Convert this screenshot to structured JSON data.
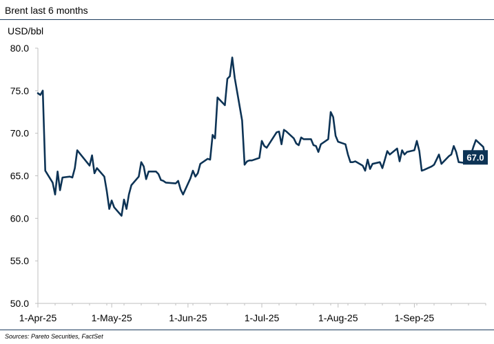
{
  "header": {
    "title": "Brent last 6 months"
  },
  "footer": {
    "source": "Sources: Pareto Securities, FactSet"
  },
  "colors": {
    "line": "#0d3355",
    "label_bg": "#0d3355",
    "label_text": "#ffffff",
    "rule": "#1b3a5c",
    "axis": "#bfbfbf"
  },
  "chart_data": {
    "type": "line",
    "title": "Brent last 6 months",
    "ylabel": "USD/bbl",
    "xlabel": "",
    "ylim": [
      50,
      80
    ],
    "yticks": [
      50,
      55,
      60,
      65,
      70,
      75,
      80
    ],
    "ytick_labels": [
      "50.0",
      "55.0",
      "60.0",
      "65.0",
      "70.0",
      "75.0",
      "80.0"
    ],
    "xlim": [
      "2025-04-01",
      "2025-09-30"
    ],
    "xticks": [
      "2025-04-01",
      "2025-05-01",
      "2025-06-01",
      "2025-07-01",
      "2025-08-01",
      "2025-09-01"
    ],
    "xtick_labels": [
      "1-Apr-25",
      "1-May-25",
      "1-Jun-25",
      "1-Jul-25",
      "1-Aug-25",
      "1-Sep-25"
    ],
    "grid": false,
    "end_label": "67.0",
    "series": [
      {
        "x": [
          "2025-04-01",
          "2025-04-02",
          "2025-04-03",
          "2025-04-04",
          "2025-04-07",
          "2025-04-08",
          "2025-04-09",
          "2025-04-10",
          "2025-04-11",
          "2025-04-14",
          "2025-04-15",
          "2025-04-16",
          "2025-04-17",
          "2025-04-22",
          "2025-04-23",
          "2025-04-24",
          "2025-04-25",
          "2025-04-28",
          "2025-04-29",
          "2025-04-30",
          "2025-05-01",
          "2025-05-02",
          "2025-05-05",
          "2025-05-06",
          "2025-05-07",
          "2025-05-08",
          "2025-05-09",
          "2025-05-12",
          "2025-05-13",
          "2025-05-14",
          "2025-05-15",
          "2025-05-16",
          "2025-05-19",
          "2025-05-20",
          "2025-05-21",
          "2025-05-22",
          "2025-05-23",
          "2025-05-27",
          "2025-05-28",
          "2025-05-29",
          "2025-05-30",
          "2025-06-02",
          "2025-06-03",
          "2025-06-04",
          "2025-06-05",
          "2025-06-06",
          "2025-06-09",
          "2025-06-10",
          "2025-06-11",
          "2025-06-12",
          "2025-06-13",
          "2025-06-16",
          "2025-06-17",
          "2025-06-18",
          "2025-06-19",
          "2025-06-20",
          "2025-06-23",
          "2025-06-24",
          "2025-06-25",
          "2025-06-26",
          "2025-06-27",
          "2025-06-30",
          "2025-07-01",
          "2025-07-02",
          "2025-07-03",
          "2025-07-07",
          "2025-07-08",
          "2025-07-09",
          "2025-07-10",
          "2025-07-11",
          "2025-07-14",
          "2025-07-15",
          "2025-07-16",
          "2025-07-17",
          "2025-07-18",
          "2025-07-21",
          "2025-07-22",
          "2025-07-23",
          "2025-07-24",
          "2025-07-25",
          "2025-07-28",
          "2025-07-29",
          "2025-07-30",
          "2025-07-31",
          "2025-08-01",
          "2025-08-04",
          "2025-08-05",
          "2025-08-06",
          "2025-08-07",
          "2025-08-08",
          "2025-08-11",
          "2025-08-12",
          "2025-08-13",
          "2025-08-14",
          "2025-08-15",
          "2025-08-18",
          "2025-08-19",
          "2025-08-20",
          "2025-08-21",
          "2025-08-22",
          "2025-08-25",
          "2025-08-26",
          "2025-08-27",
          "2025-08-28",
          "2025-08-29",
          "2025-09-01",
          "2025-09-02",
          "2025-09-03",
          "2025-09-04",
          "2025-09-05",
          "2025-09-08",
          "2025-09-09",
          "2025-09-10",
          "2025-09-11",
          "2025-09-12",
          "2025-09-15",
          "2025-09-16",
          "2025-09-17",
          "2025-09-18",
          "2025-09-19",
          "2025-09-22",
          "2025-09-23",
          "2025-09-24",
          "2025-09-25",
          "2025-09-26",
          "2025-09-29",
          "2025-09-30"
        ],
        "values": [
          74.7,
          74.5,
          75.0,
          65.6,
          64.2,
          62.8,
          65.5,
          63.3,
          64.8,
          64.9,
          64.8,
          65.9,
          68.0,
          66.2,
          67.4,
          65.3,
          65.9,
          64.9,
          63.2,
          61.1,
          62.1,
          61.3,
          60.3,
          62.2,
          61.1,
          62.8,
          63.9,
          64.9,
          66.6,
          66.1,
          64.6,
          65.5,
          65.5,
          65.2,
          64.5,
          64.4,
          64.2,
          64.1,
          64.4,
          63.4,
          62.8,
          64.7,
          65.6,
          64.9,
          65.3,
          66.4,
          67.0,
          66.9,
          69.8,
          69.4,
          74.2,
          73.3,
          76.4,
          76.7,
          78.9,
          76.5,
          71.5,
          66.3,
          66.7,
          66.8,
          66.8,
          67.1,
          69.1,
          68.5,
          68.3,
          70.1,
          70.2,
          68.7,
          70.4,
          70.2,
          69.4,
          68.8,
          68.6,
          69.5,
          69.3,
          69.3,
          68.6,
          68.5,
          67.8,
          68.7,
          69.3,
          72.5,
          71.9,
          69.7,
          69.0,
          68.7,
          67.5,
          66.6,
          66.6,
          66.7,
          66.2,
          65.6,
          66.9,
          65.8,
          66.4,
          66.6,
          65.9,
          66.9,
          67.9,
          67.5,
          68.2,
          66.7,
          68.0,
          67.5,
          67.8,
          68.0,
          69.1,
          67.9,
          65.6,
          65.7,
          66.1,
          66.3,
          66.9,
          67.5,
          66.4,
          67.3,
          67.5,
          68.5,
          67.8,
          66.6,
          66.5,
          67.6,
          67.5,
          68.4,
          69.2,
          68.4,
          67.0
        ]
      }
    ]
  }
}
